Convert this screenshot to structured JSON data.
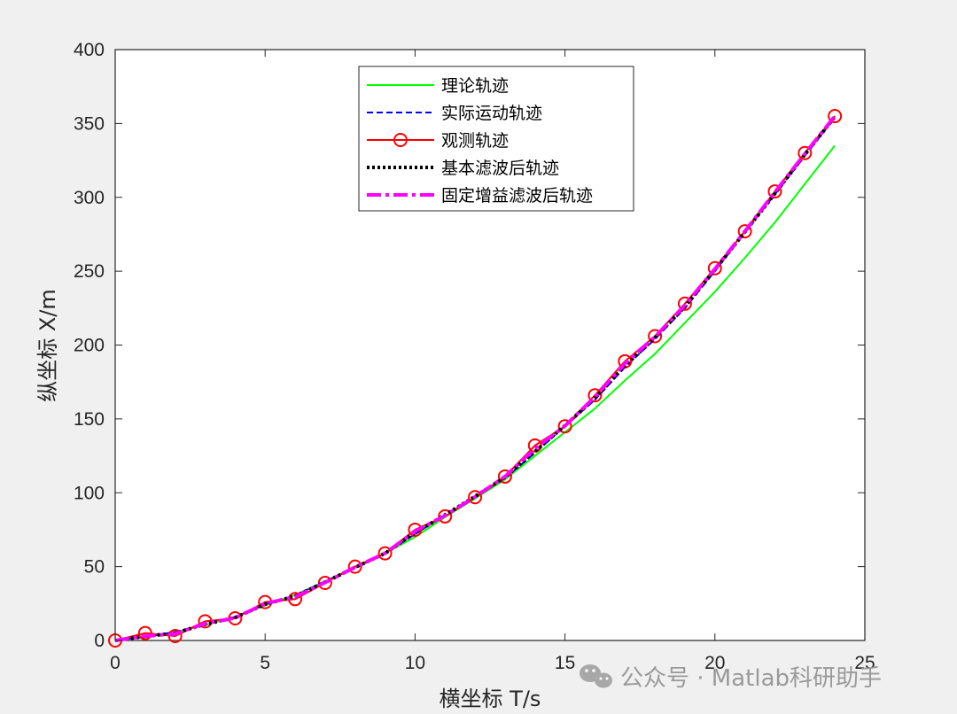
{
  "chart_data": {
    "type": "line",
    "title": "",
    "xlabel": "横坐标 T/s",
    "ylabel": "纵坐标 X/m",
    "xlim": [
      0,
      25
    ],
    "ylim": [
      0,
      400
    ],
    "xticks": [
      0,
      5,
      10,
      15,
      20,
      25
    ],
    "yticks": [
      0,
      50,
      100,
      150,
      200,
      250,
      300,
      350,
      400
    ],
    "grid": false,
    "legend_position": "top-center",
    "series": [
      {
        "name": "理论轨迹",
        "color": "#00ff00",
        "style": "solid",
        "x": [
          0,
          1,
          2,
          3,
          4,
          5,
          6,
          7,
          8,
          9,
          10,
          11,
          12,
          13,
          14,
          15,
          16,
          17,
          18,
          19,
          20,
          21,
          22,
          23,
          24
        ],
        "y": [
          0,
          2.2,
          5.6,
          10.5,
          15.9,
          23.8,
          30.8,
          40.0,
          49.7,
          59.0,
          70.0,
          83.5,
          96.0,
          109.0,
          125.0,
          141.0,
          157.0,
          176.0,
          194.0,
          215.0,
          236.0,
          259.0,
          283.0,
          309.0,
          335.0
        ]
      },
      {
        "name": "实际运动轨迹",
        "color": "#0000ff",
        "style": "dashed",
        "x": [
          0,
          1,
          2,
          3,
          4,
          5,
          6,
          7,
          8,
          9,
          10,
          11,
          12,
          13,
          14,
          15,
          16,
          17,
          18,
          19,
          20,
          21,
          22,
          23,
          24
        ],
        "y": [
          0,
          2.5,
          5.8,
          11.0,
          16.0,
          24.5,
          30.5,
          40.0,
          49.0,
          59.0,
          72.0,
          85.0,
          97.0,
          110.0,
          127.0,
          145.0,
          163.0,
          185.0,
          204.0,
          225.0,
          250.0,
          276.0,
          302.0,
          328.0,
          354.0
        ]
      },
      {
        "name": "观测轨迹",
        "color": "#ff0000",
        "style": "solid-circle",
        "x": [
          0,
          1,
          2,
          3,
          4,
          5,
          6,
          7,
          8,
          9,
          10,
          11,
          12,
          13,
          14,
          15,
          16,
          17,
          18,
          19,
          20,
          21,
          22,
          23,
          24
        ],
        "y": [
          0,
          5,
          3,
          13,
          15,
          26,
          28,
          39,
          50,
          59,
          75,
          84,
          97,
          111,
          132,
          145,
          166,
          189,
          206,
          228,
          252,
          277,
          304,
          330,
          355
        ]
      },
      {
        "name": "基本滤波后轨迹",
        "color": "#000000",
        "style": "dotted",
        "x": [
          0,
          1,
          2,
          3,
          4,
          5,
          6,
          7,
          8,
          9,
          10,
          11,
          12,
          13,
          14,
          15,
          16,
          17,
          18,
          19,
          20,
          21,
          22,
          23,
          24
        ],
        "y": [
          0,
          2.8,
          5.0,
          11.0,
          15.5,
          24.5,
          30.0,
          39.5,
          49.5,
          59.0,
          73.0,
          85.0,
          97.5,
          110.5,
          128.0,
          145.5,
          164.0,
          186.0,
          205.0,
          226.0,
          251.0,
          276.5,
          302.5,
          329.0,
          354.5
        ]
      },
      {
        "name": "固定增益滤波后轨迹",
        "color": "#ff00ff",
        "style": "dashdot",
        "x": [
          0,
          1,
          2,
          3,
          4,
          5,
          6,
          7,
          8,
          9,
          10,
          11,
          12,
          13,
          14,
          15,
          16,
          17,
          18,
          19,
          20,
          21,
          22,
          23,
          24
        ],
        "y": [
          0,
          3.0,
          4.5,
          11.5,
          15.2,
          25.0,
          29.5,
          39.2,
          49.6,
          59.0,
          74.0,
          84.5,
          97.2,
          111.0,
          130.0,
          145.2,
          165.0,
          187.5,
          205.5,
          227.0,
          251.5,
          277.0,
          303.5,
          329.5,
          355.0
        ]
      }
    ]
  },
  "watermark": {
    "icon": "wechat-icon",
    "text": "公众号 · Matlab科研助手"
  }
}
